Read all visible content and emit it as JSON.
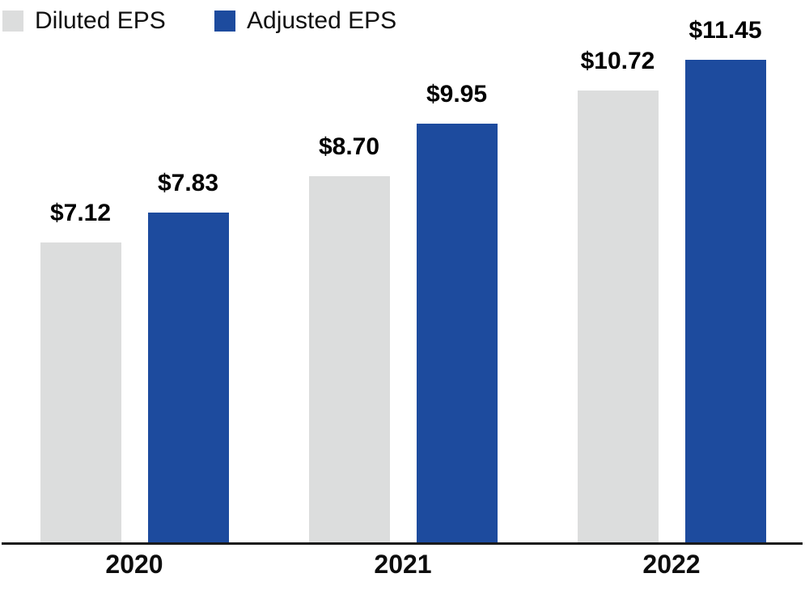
{
  "chart_data": {
    "type": "bar",
    "title": "",
    "xlabel": "",
    "ylabel": "",
    "categories": [
      "2020",
      "2021",
      "2022"
    ],
    "series": [
      {
        "name": "Diluted EPS",
        "color": "#dcdddd",
        "values": [
          7.12,
          8.7,
          10.72
        ],
        "labels": [
          "$7.12",
          "$8.70",
          "$10.72"
        ]
      },
      {
        "name": "Adjusted EPS",
        "color": "#1d4b9e",
        "values": [
          7.83,
          9.95,
          11.45
        ],
        "labels": [
          "$7.83",
          "$9.95",
          "$11.45"
        ]
      }
    ],
    "ylim": [
      0,
      12.87
    ],
    "grid": false,
    "y_axis_visible": false,
    "legend_position": "top-left",
    "axis_line_color": "#1a1a1a",
    "value_label_color": "#000000"
  }
}
